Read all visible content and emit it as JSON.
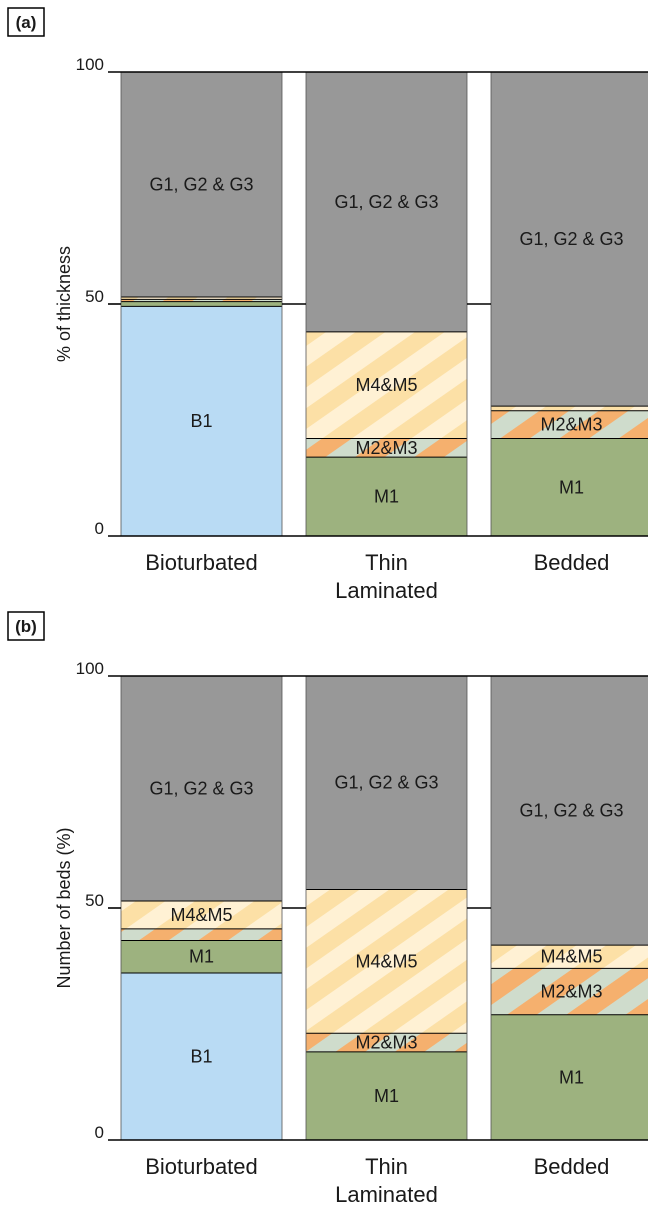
{
  "chart_data": [
    {
      "panel": "(a)",
      "type": "bar",
      "stacked": true,
      "ylabel": "% of thickness",
      "ylim": [
        0,
        100
      ],
      "yticks": [
        "0",
        "50",
        "100"
      ],
      "categories": [
        "Bioturbated",
        "Thin Laminated",
        "Bedded"
      ],
      "category_lines": [
        [
          "Bioturbated"
        ],
        [
          "Thin",
          "Laminated"
        ],
        [
          "Bedded"
        ]
      ],
      "bars": [
        [
          {
            "key": "B1",
            "label": "B1",
            "value": 49.5,
            "pattern": "blue"
          },
          {
            "key": "M1",
            "label": "",
            "value": 1.0,
            "pattern": "green"
          },
          {
            "key": "M2M3",
            "label": "",
            "value": 0.5,
            "pattern": "m2m3"
          },
          {
            "key": "M4M5",
            "label": "",
            "value": 0.5,
            "pattern": "m4m5"
          },
          {
            "key": "G",
            "label": "G1, G2 & G3",
            "value": 48.5,
            "pattern": "gray"
          }
        ],
        [
          {
            "key": "M1",
            "label": "M1",
            "value": 17,
            "pattern": "green"
          },
          {
            "key": "M2M3",
            "label": "M2&M3",
            "value": 4,
            "pattern": "m2m3"
          },
          {
            "key": "M4M5",
            "label": "M4&M5",
            "value": 23,
            "pattern": "m4m5"
          },
          {
            "key": "G",
            "label": "G1, G2 & G3",
            "value": 56,
            "pattern": "gray"
          }
        ],
        [
          {
            "key": "M1",
            "label": "M1",
            "value": 21,
            "pattern": "green"
          },
          {
            "key": "M2M3",
            "label": "M2&M3",
            "value": 6,
            "pattern": "m2m3"
          },
          {
            "key": "M4M5",
            "label": "",
            "value": 1,
            "pattern": "m4m5"
          },
          {
            "key": "G",
            "label": "G1, G2 & G3",
            "value": 72,
            "pattern": "gray"
          }
        ]
      ]
    },
    {
      "panel": "(b)",
      "type": "bar",
      "stacked": true,
      "ylabel": "Number of beds (%)",
      "ylim": [
        0,
        100
      ],
      "yticks": [
        "0",
        "50",
        "100"
      ],
      "categories": [
        "Bioturbated",
        "Thin Laminated",
        "Bedded"
      ],
      "category_lines": [
        [
          "Bioturbated"
        ],
        [
          "Thin",
          "Laminated"
        ],
        [
          "Bedded"
        ]
      ],
      "bars": [
        [
          {
            "key": "B1",
            "label": "B1",
            "value": 36,
            "pattern": "blue"
          },
          {
            "key": "M1",
            "label": "M1",
            "value": 7,
            "pattern": "green"
          },
          {
            "key": "M2M3",
            "label": "",
            "value": 2.5,
            "pattern": "m2m3"
          },
          {
            "key": "M4M5",
            "label": "M4&M5",
            "value": 6,
            "pattern": "m4m5"
          },
          {
            "key": "G",
            "label": "G1, G2 & G3",
            "value": 48.5,
            "pattern": "gray"
          }
        ],
        [
          {
            "key": "M1",
            "label": "M1",
            "value": 19,
            "pattern": "green"
          },
          {
            "key": "M2M3",
            "label": "M2&M3",
            "value": 4,
            "pattern": "m2m3"
          },
          {
            "key": "M4M5",
            "label": "M4&M5",
            "value": 31,
            "pattern": "m4m5"
          },
          {
            "key": "G",
            "label": "G1, G2 & G3",
            "value": 46,
            "pattern": "gray"
          }
        ],
        [
          {
            "key": "M1",
            "label": "M1",
            "value": 27,
            "pattern": "green"
          },
          {
            "key": "M2M3",
            "label": "M2&M3",
            "value": 10,
            "pattern": "m2m3"
          },
          {
            "key": "M4M5",
            "label": "M4&M5",
            "value": 5,
            "pattern": "m4m5"
          },
          {
            "key": "G",
            "label": "G1, G2 & G3",
            "value": 58,
            "pattern": "gray"
          }
        ]
      ]
    }
  ],
  "colors": {
    "blue": "#b9dbf4",
    "green": "#9db27f",
    "gray": "#989898",
    "m4m5_a": "#fce0a6",
    "m4m5_b": "#fff1d4",
    "m2m3_a": "#f5b06e",
    "m2m3_b": "#cfdccc"
  }
}
